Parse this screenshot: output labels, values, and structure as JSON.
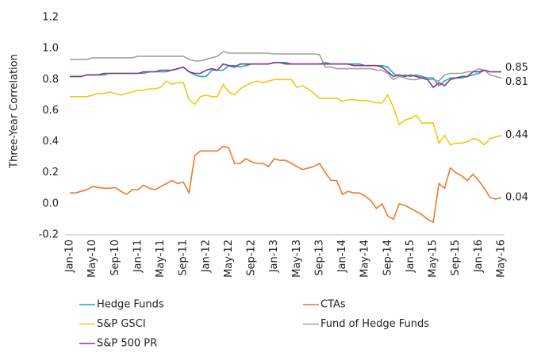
{
  "chart_data": {
    "type": "line",
    "y_label": "Three-Year Correlation",
    "categories": [
      "Jan-10",
      null,
      null,
      null,
      "May-10",
      null,
      null,
      null,
      "Sep-10",
      null,
      null,
      null,
      "Jan-11",
      null,
      null,
      null,
      "May-11",
      null,
      null,
      null,
      "Sep-11",
      null,
      null,
      null,
      "Jan-12",
      null,
      null,
      null,
      "May-12",
      null,
      null,
      null,
      "Sep-12",
      null,
      null,
      null,
      "Jan-13",
      null,
      null,
      null,
      "May-13",
      null,
      null,
      null,
      "Sep-13",
      null,
      null,
      null,
      "Jan-14",
      null,
      null,
      null,
      "May-14",
      null,
      null,
      null,
      "Sep-14",
      null,
      null,
      null,
      "Jan-15",
      null,
      null,
      null,
      "May-15",
      null,
      null,
      null,
      "Sep-15",
      null,
      null,
      null,
      "Jan-16",
      null,
      null,
      null,
      "May-16"
    ],
    "ylim": [
      -0.2,
      1.2
    ],
    "yticks": [
      -0.2,
      {
        "value": 0,
        "label": "0.0"
      },
      0.2,
      0.4,
      0.6,
      0.8,
      {
        "value": 1,
        "label": "1.0"
      },
      1.2
    ],
    "grid": false,
    "series": [
      {
        "name": "Hedge Funds",
        "color": "#1aa3c8",
        "values": [
          0.82,
          0.82,
          0.82,
          0.83,
          0.83,
          0.83,
          0.83,
          0.84,
          0.84,
          0.84,
          0.84,
          0.84,
          0.84,
          0.84,
          0.85,
          0.85,
          0.85,
          0.85,
          0.86,
          0.87,
          0.88,
          0.85,
          0.83,
          0.82,
          0.82,
          0.86,
          0.86,
          0.86,
          0.89,
          0.89,
          0.88,
          0.89,
          0.9,
          0.9,
          0.9,
          0.9,
          0.91,
          0.91,
          0.91,
          0.9,
          0.9,
          0.9,
          0.9,
          0.9,
          0.9,
          0.91,
          0.9,
          0.9,
          0.9,
          0.9,
          0.9,
          0.9,
          0.89,
          0.89,
          0.89,
          0.89,
          0.88,
          0.84,
          0.82,
          0.83,
          0.82,
          0.83,
          0.82,
          0.81,
          0.81,
          0.76,
          0.79,
          0.81,
          0.81,
          0.81,
          0.82,
          0.83,
          0.84,
          0.86,
          0.85,
          0.85,
          0.85
        ]
      },
      {
        "name": "CTAs",
        "color": "#ec7a2b",
        "values": [
          0.07,
          0.07,
          0.08,
          0.09,
          0.11,
          0.105,
          0.1,
          0.1,
          0.105,
          0.08,
          0.06,
          0.09,
          0.09,
          0.12,
          0.1,
          0.09,
          0.11,
          0.13,
          0.15,
          0.13,
          0.14,
          0.07,
          0.31,
          0.34,
          0.34,
          0.34,
          0.34,
          0.37,
          0.36,
          0.26,
          0.26,
          0.29,
          0.27,
          0.26,
          0.26,
          0.24,
          0.29,
          0.28,
          0.28,
          0.26,
          0.24,
          0.22,
          0.23,
          0.24,
          0.26,
          0.2,
          0.15,
          0.15,
          0.06,
          0.08,
          0.07,
          0.07,
          0.05,
          0.02,
          -0.03,
          0.0,
          -0.08,
          -0.1,
          0.0,
          -0.01,
          -0.03,
          -0.05,
          -0.07,
          -0.1,
          -0.12,
          0.13,
          0.1,
          0.23,
          0.2,
          0.18,
          0.15,
          0.19,
          0.15,
          0.1,
          0.04,
          0.03,
          0.04
        ],
        "end_label": "0.04"
      },
      {
        "name": "S&P GSCI",
        "color": "#f5c518",
        "values": [
          0.69,
          0.69,
          0.69,
          0.69,
          0.7,
          0.71,
          0.71,
          0.72,
          0.71,
          0.7,
          0.71,
          0.72,
          0.73,
          0.73,
          0.74,
          0.74,
          0.75,
          0.79,
          0.77,
          0.78,
          0.78,
          0.67,
          0.64,
          0.69,
          0.7,
          0.69,
          0.69,
          0.77,
          0.72,
          0.7,
          0.74,
          0.76,
          0.78,
          0.79,
          0.78,
          0.79,
          0.8,
          0.8,
          0.8,
          0.8,
          0.75,
          0.76,
          0.74,
          0.71,
          0.68,
          0.68,
          0.68,
          0.68,
          0.66,
          0.67,
          0.67,
          0.665,
          0.665,
          0.66,
          0.65,
          0.65,
          0.7,
          0.62,
          0.51,
          0.54,
          0.55,
          0.57,
          0.52,
          0.52,
          0.52,
          0.39,
          0.44,
          0.38,
          0.39,
          0.39,
          0.4,
          0.42,
          0.41,
          0.38,
          0.42,
          0.43,
          0.44
        ],
        "end_label": "0.44"
      },
      {
        "name": "Fund of Hedge Funds",
        "color": "#a0a0a0",
        "values": [
          0.93,
          0.93,
          0.93,
          0.93,
          0.94,
          0.94,
          0.94,
          0.94,
          0.94,
          0.94,
          0.94,
          0.94,
          0.95,
          0.95,
          0.95,
          0.95,
          0.95,
          0.95,
          0.95,
          0.95,
          0.95,
          0.93,
          0.92,
          0.92,
          0.93,
          0.94,
          0.95,
          0.98,
          0.97,
          0.97,
          0.97,
          0.97,
          0.97,
          0.97,
          0.97,
          0.97,
          0.965,
          0.965,
          0.965,
          0.965,
          0.965,
          0.965,
          0.965,
          0.965,
          0.96,
          0.88,
          0.88,
          0.87,
          0.87,
          0.87,
          0.87,
          0.87,
          0.87,
          0.87,
          0.86,
          0.86,
          0.84,
          0.8,
          0.82,
          0.81,
          0.8,
          0.8,
          0.81,
          0.8,
          0.8,
          0.79,
          0.83,
          0.84,
          0.84,
          0.84,
          0.85,
          0.85,
          0.87,
          0.86,
          0.83,
          0.82,
          0.81
        ],
        "end_label": "0.81"
      },
      {
        "name": "S&P 500 PR",
        "color": "#8e3a7a",
        "values": [
          0.82,
          0.82,
          0.82,
          0.83,
          0.83,
          0.83,
          0.84,
          0.84,
          0.84,
          0.84,
          0.84,
          0.84,
          0.84,
          0.85,
          0.85,
          0.85,
          0.86,
          0.86,
          0.86,
          0.87,
          0.88,
          0.85,
          0.84,
          0.84,
          0.86,
          0.87,
          0.86,
          0.9,
          0.89,
          0.88,
          0.9,
          0.9,
          0.9,
          0.9,
          0.9,
          0.9,
          0.91,
          0.91,
          0.9,
          0.9,
          0.9,
          0.9,
          0.9,
          0.9,
          0.9,
          0.9,
          0.9,
          0.9,
          0.9,
          0.9,
          0.89,
          0.89,
          0.89,
          0.89,
          0.89,
          0.88,
          0.85,
          0.82,
          0.83,
          0.82,
          0.83,
          0.82,
          0.81,
          0.8,
          0.75,
          0.78,
          0.76,
          0.8,
          0.81,
          0.82,
          0.82,
          0.85,
          0.85,
          0.86,
          0.85,
          0.85,
          0.85
        ],
        "end_label": "0.85"
      }
    ]
  }
}
